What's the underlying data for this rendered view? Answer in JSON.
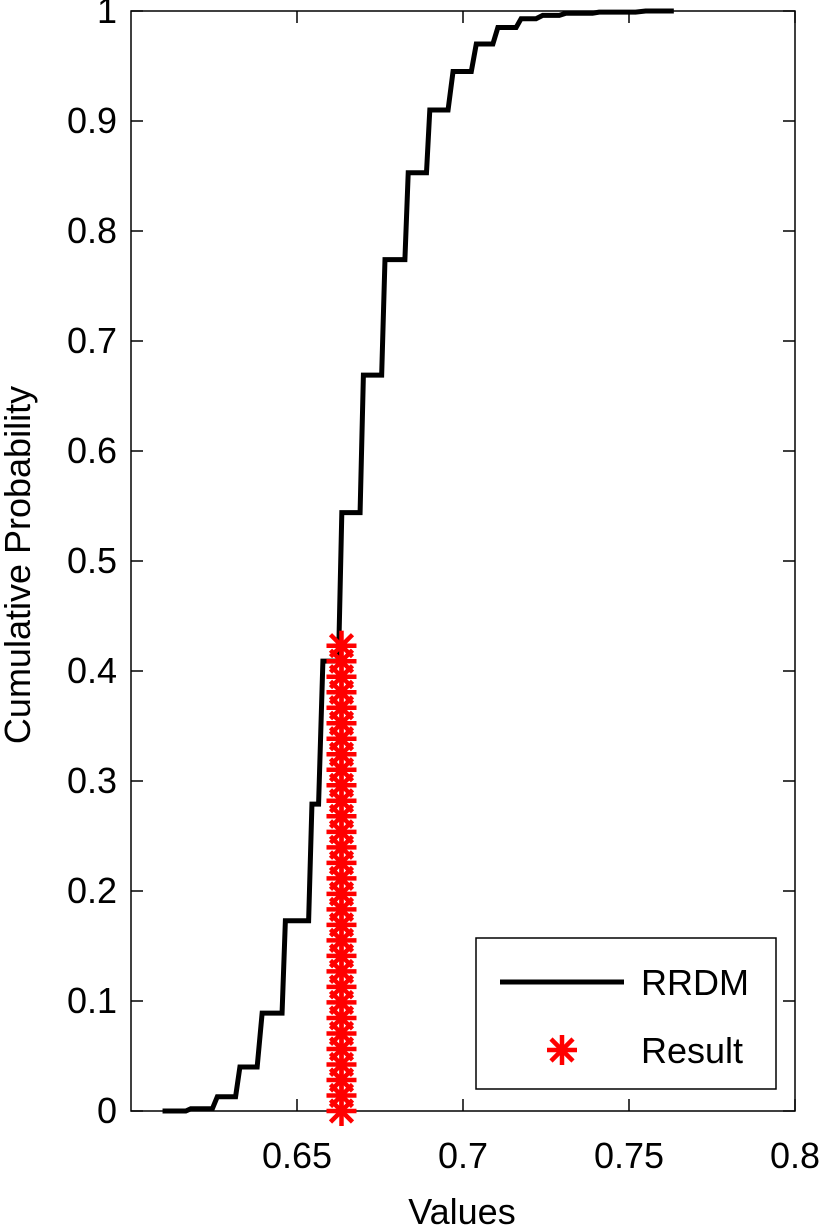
{
  "chart_data": {
    "type": "line",
    "title": "",
    "xlabel": "Values",
    "ylabel": "Cumulative Probability",
    "xlim": [
      0.6,
      0.8
    ],
    "ylim": [
      0,
      1
    ],
    "xticks": [
      0.65,
      0.7,
      0.75,
      0.8
    ],
    "xtick_labels": [
      "0.65",
      "0.7",
      "0.75",
      "0.8"
    ],
    "yticks": [
      0,
      0.1,
      0.2,
      0.3,
      0.4,
      0.5,
      0.6,
      0.7,
      0.8,
      0.9,
      1
    ],
    "ytick_labels": [
      "0",
      "0.1",
      "0.2",
      "0.3",
      "0.4",
      "0.5",
      "0.6",
      "0.7",
      "0.8",
      "0.9",
      "1"
    ],
    "grid": false,
    "legend_position": "bottom-right",
    "series": [
      {
        "name": "RRDM",
        "style": "stairs",
        "color": "#000000",
        "x": [
          0.6095,
          0.6165,
          0.618,
          0.6245,
          0.626,
          0.6315,
          0.6328,
          0.638,
          0.6395,
          0.6455,
          0.6465,
          0.6535,
          0.6545,
          0.6565,
          0.6578,
          0.6625,
          0.6635,
          0.669,
          0.67,
          0.6755,
          0.6765,
          0.6825,
          0.6835,
          0.689,
          0.69,
          0.6955,
          0.697,
          0.7025,
          0.704,
          0.709,
          0.7105,
          0.716,
          0.7175,
          0.722,
          0.724,
          0.729,
          0.731,
          0.739,
          0.741,
          0.752,
          0.755,
          0.7635
        ],
        "y": [
          0.0,
          0.0,
          0.002,
          0.002,
          0.013,
          0.013,
          0.04,
          0.04,
          0.089,
          0.089,
          0.173,
          0.173,
          0.279,
          0.279,
          0.409,
          0.409,
          0.544,
          0.544,
          0.669,
          0.669,
          0.774,
          0.774,
          0.853,
          0.853,
          0.91,
          0.91,
          0.945,
          0.945,
          0.97,
          0.97,
          0.985,
          0.985,
          0.993,
          0.993,
          0.996,
          0.996,
          0.998,
          0.998,
          0.999,
          0.999,
          1.0,
          1.0
        ]
      },
      {
        "name": "Result",
        "style": "markers",
        "marker": "asterisk",
        "color": "#ff0000",
        "x_value": 0.6634,
        "y_values": [
          0,
          0.0141,
          0.0282,
          0.0423,
          0.0564,
          0.0705,
          0.0846,
          0.0987,
          0.1128,
          0.1269,
          0.141,
          0.1551,
          0.1692,
          0.1833,
          0.1974,
          0.2115,
          0.2256,
          0.2397,
          0.2538,
          0.2679,
          0.282,
          0.2961,
          0.3102,
          0.3243,
          0.3384,
          0.3525,
          0.3666,
          0.3807,
          0.3948,
          0.4089,
          0.423
        ]
      }
    ]
  }
}
